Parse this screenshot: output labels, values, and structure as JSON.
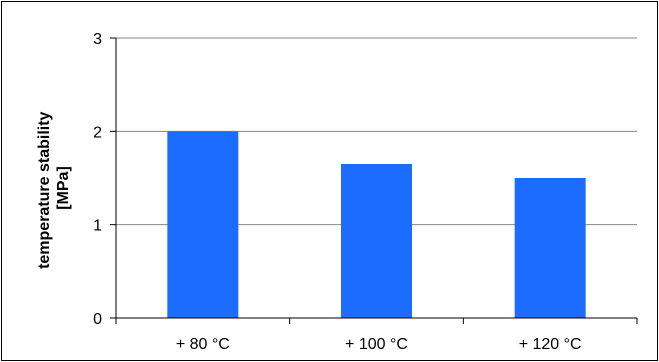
{
  "chart_data": {
    "type": "bar",
    "title": "",
    "xlabel": "",
    "ylabel_lines": [
      "temperature stability",
      "[MPa]"
    ],
    "categories": [
      "+ 80 °C",
      "+ 100 °C",
      "+ 120 °C"
    ],
    "values": [
      2.0,
      1.65,
      1.5
    ],
    "ylim": [
      0,
      3
    ],
    "yticks": [
      0,
      1,
      2,
      3
    ],
    "grid": true,
    "legend": "none",
    "bar_color": "#1c6dff"
  }
}
